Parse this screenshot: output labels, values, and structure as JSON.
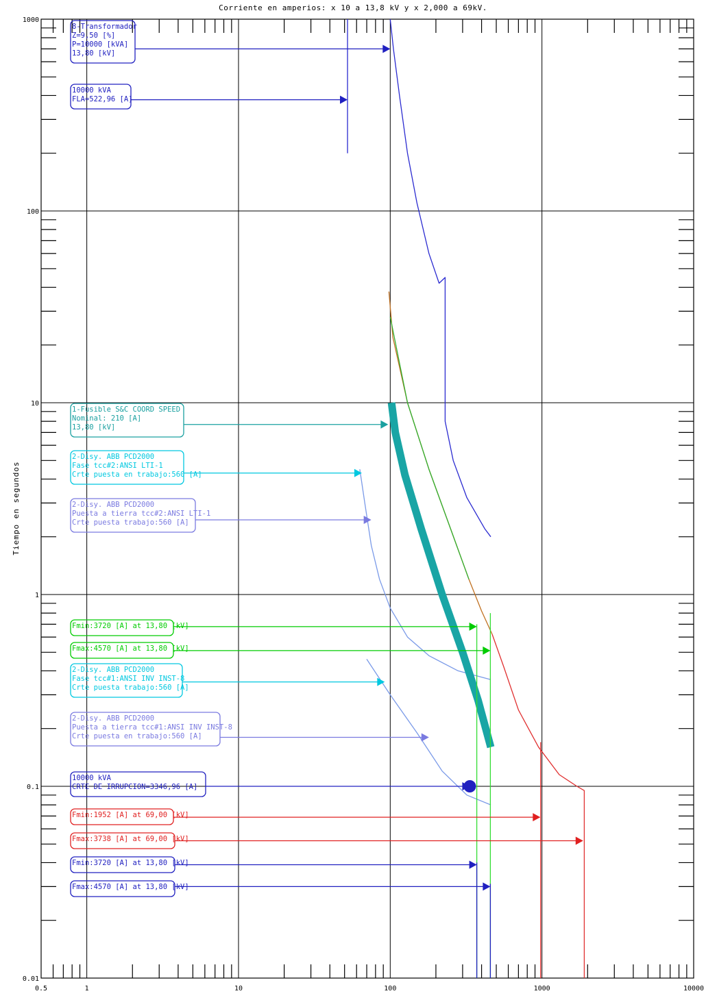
{
  "chart_data": {
    "type": "line",
    "title": "Corriente en amperios: x 10 a 13,8 kV y x 2,000 a 69kV.",
    "ylabel": "Tiempo en segundos",
    "xscale": "log",
    "yscale": "log",
    "xlim": [
      0.5,
      10000
    ],
    "ylim": [
      0.01,
      1000
    ],
    "grid": true,
    "x_ticks": [
      "0.5",
      "1",
      "10",
      "100",
      "1000",
      "10000"
    ],
    "y_ticks": [
      "0.01",
      "0.1",
      "1",
      "10",
      "100",
      "1000"
    ],
    "annotations": [
      {
        "lines": [
          "8-Transformador",
          "Z=9,50 [%]",
          "P=10000 [kVA]",
          "13,80 [kV]"
        ],
        "color": "#2020c0",
        "arrow_x": 100,
        "arrow_y": 700
      },
      {
        "lines": [
          "10000 kVA",
          "FLA=522,96 [A]"
        ],
        "color": "#2020c0",
        "arrow_x": 52.3,
        "arrow_y": 380
      },
      {
        "lines": [
          "1-Fusible S&C COORD SPEED",
          "Nominal: 210 [A]",
          "13,80 [kV]"
        ],
        "color": "#1aa0a0",
        "arrow_x": 97,
        "arrow_y": 7.7
      },
      {
        "lines": [
          "2-Disy. ABB PCD2000",
          "Fase tcc#2:ANSI LTI-1",
          "Crte puesta en trabajo:560 [A]"
        ],
        "color": "#00c8e0",
        "arrow_x": 65,
        "arrow_y": 4.3
      },
      {
        "lines": [
          "2-Disy. ABB PCD2000",
          " Puesta a tierra tcc#2:ANSI LTI-1",
          "Crte puesta trabajo:560 [A]"
        ],
        "color": "#7a7ae0",
        "arrow_x": 75,
        "arrow_y": 2.45
      },
      {
        "lines": [
          "Fmin:3720 [A] at 13,80 [kV]"
        ],
        "color": "#00cc00",
        "arrow_x": 372,
        "arrow_y": 0.68
      },
      {
        "lines": [
          "Fmax:4570 [A] at 13,80 [kV]"
        ],
        "color": "#00cc00",
        "arrow_x": 457,
        "arrow_y": 0.51
      },
      {
        "lines": [
          "2-Disy. ABB PCD2000",
          "Fase tcc#1:ANSI INV INST-8",
          "Crte puesta trabajo:560 [A]"
        ],
        "color": "#00c8e0",
        "arrow_x": 92,
        "arrow_y": 0.35
      },
      {
        "lines": [
          "2-Disy. ABB PCD2000",
          " Puesta a tierra tcc#1:ANSI INV INST-8",
          "Crte puesta en trabajo:560 [A]"
        ],
        "color": "#7a7ae0",
        "arrow_x": 180,
        "arrow_y": 0.18
      },
      {
        "lines": [
          "10000 kVA",
          "CRTE DE IRRUPCION=3346,96 [A]"
        ],
        "color": "#2020c0",
        "arrow_x": 334.7,
        "arrow_y": 0.1
      },
      {
        "lines": [
          "Fmin:1952 [A] at 69,00 [kV]"
        ],
        "color": "#e02020",
        "arrow_x": 976,
        "arrow_y": 0.069
      },
      {
        "lines": [
          "Fmax:3738 [A] at 69,00 [kV]"
        ],
        "color": "#e02020",
        "arrow_x": 1869,
        "arrow_y": 0.052
      },
      {
        "lines": [
          "Fmin:3720 [A] at 13,80 [kV]"
        ],
        "color": "#2020c0",
        "arrow_x": 372,
        "arrow_y": 0.039
      },
      {
        "lines": [
          "Fmax:4570 [A] at 13,80 [kV]"
        ],
        "color": "#2020c0",
        "arrow_x": 457,
        "arrow_y": 0.03
      }
    ],
    "series": [
      {
        "color": "#2a2ad0",
        "x": [
          100,
          105,
          115,
          130,
          150,
          180,
          210,
          230,
          230,
          260,
          320,
          420,
          460
        ],
        "y": [
          1000,
          700,
          400,
          200,
          110,
          60,
          42,
          45,
          8,
          5,
          3.2,
          2.2,
          2.0
        ]
      },
      {
        "color": "#2a2ad0",
        "x": [
          52.3,
          52.3
        ],
        "y": [
          200,
          1000
        ]
      },
      {
        "color": "#c07020",
        "x": [
          98,
          104,
          130,
          180,
          250,
          330,
          400,
          470
        ],
        "y": [
          38,
          22,
          10,
          4.5,
          2.2,
          1.2,
          0.82,
          0.62
        ]
      },
      {
        "color": "#30b030",
        "x": [
          100,
          130,
          180,
          250,
          330
        ],
        "y": [
          28,
          10,
          4.5,
          2.2,
          1.2
        ]
      },
      {
        "color": "#e03030",
        "x": [
          470,
          560,
          700,
          950,
          1300,
          1700,
          1900,
          1900
        ],
        "y": [
          0.62,
          0.42,
          0.25,
          0.16,
          0.115,
          0.1,
          0.095,
          0.01
        ]
      },
      {
        "color": "#e03030",
        "x": [
          980,
          980
        ],
        "y": [
          0.17,
          0.01
        ]
      },
      {
        "color": "#7a9ae8",
        "x": [
          63,
          68,
          75,
          85,
          100,
          130,
          180,
          280,
          460
        ],
        "y": [
          4.5,
          3.0,
          1.8,
          1.2,
          0.85,
          0.6,
          0.48,
          0.4,
          0.36
        ]
      },
      {
        "color": "#7a9ae8",
        "x": [
          70,
          100,
          150,
          220,
          320,
          460
        ],
        "y": [
          0.46,
          0.3,
          0.19,
          0.12,
          0.09,
          0.08
        ]
      },
      {
        "color": "#19a5a5",
        "width": 11,
        "x": [
          102,
          108,
          125,
          160,
          220,
          300,
          380,
          460
        ],
        "y": [
          10,
          7,
          4.2,
          2.2,
          1.0,
          0.5,
          0.28,
          0.16
        ]
      },
      {
        "color": "#33dd33",
        "x": [
          372,
          372
        ],
        "y": [
          0.7,
          0.01
        ]
      },
      {
        "color": "#33dd33",
        "x": [
          457,
          457
        ],
        "y": [
          0.8,
          0.01
        ]
      },
      {
        "color": "#2020c0",
        "x": [
          372,
          372
        ],
        "y": [
          0.04,
          0.01
        ]
      },
      {
        "color": "#2020c0",
        "x": [
          457,
          457
        ],
        "y": [
          0.031,
          0.01
        ]
      }
    ],
    "points": [
      {
        "color": "#2020c0",
        "x": 334.7,
        "y": 0.1
      }
    ]
  }
}
